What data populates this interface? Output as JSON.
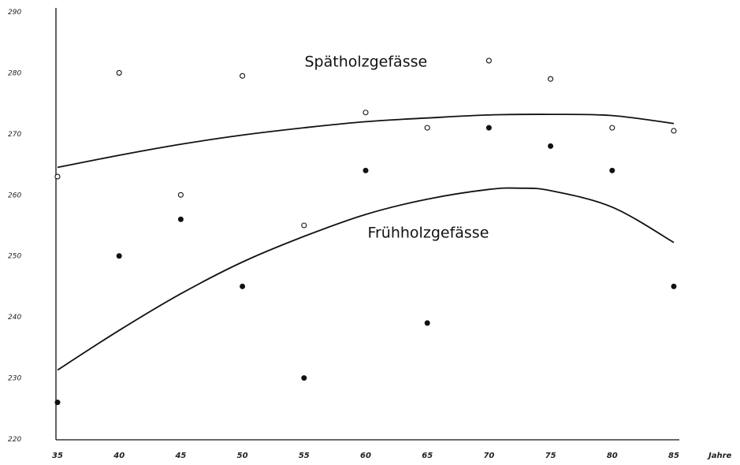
{
  "chart_data": {
    "type": "scatter",
    "title": "",
    "xlabel": "Jahre",
    "ylabel": "",
    "x_ticks": [
      "35",
      "40",
      "45",
      "50",
      "55",
      "60",
      "65",
      "70",
      "75",
      "80",
      "85"
    ],
    "y_ticks": [
      "220",
      "230",
      "240",
      "250",
      "260",
      "270",
      "280",
      "290"
    ],
    "y_tick_labels": [
      "220",
      "230",
      "240",
      "250",
      "260",
      "270",
      "280",
      "290"
    ],
    "xlim": [
      35,
      85
    ],
    "ylim": [
      220,
      290
    ],
    "grid": false,
    "legend": "none",
    "series": [
      {
        "name": "Spätholzgefässe",
        "marker": "open-circle",
        "points": [
          {
            "x": 35,
            "y": 263
          },
          {
            "x": 40,
            "y": 280
          },
          {
            "x": 45,
            "y": 260
          },
          {
            "x": 50,
            "y": 279.5
          },
          {
            "x": 55,
            "y": 255
          },
          {
            "x": 60,
            "y": 273.5
          },
          {
            "x": 65,
            "y": 271
          },
          {
            "x": 70,
            "y": 282
          },
          {
            "x": 75,
            "y": 279
          },
          {
            "x": 80,
            "y": 271
          },
          {
            "x": 85,
            "y": 270.5
          }
        ],
        "trend": [
          {
            "x": 35,
            "y": 264.5
          },
          {
            "x": 40,
            "y": 266.5
          },
          {
            "x": 45,
            "y": 268.3
          },
          {
            "x": 50,
            "y": 269.8
          },
          {
            "x": 55,
            "y": 271
          },
          {
            "x": 60,
            "y": 272
          },
          {
            "x": 65,
            "y": 272.6
          },
          {
            "x": 70,
            "y": 273.1
          },
          {
            "x": 75,
            "y": 273.2
          },
          {
            "x": 80,
            "y": 273
          },
          {
            "x": 85,
            "y": 271.7
          }
        ]
      },
      {
        "name": "Frühholzgefässe",
        "marker": "filled-circle",
        "points": [
          {
            "x": 35,
            "y": 226
          },
          {
            "x": 40,
            "y": 250
          },
          {
            "x": 45,
            "y": 256
          },
          {
            "x": 50,
            "y": 245
          },
          {
            "x": 55,
            "y": 230
          },
          {
            "x": 60,
            "y": 264
          },
          {
            "x": 65,
            "y": 239
          },
          {
            "x": 70,
            "y": 271
          },
          {
            "x": 75,
            "y": 268
          },
          {
            "x": 80,
            "y": 264
          },
          {
            "x": 85,
            "y": 245
          }
        ],
        "trend": [
          {
            "x": 35,
            "y": 231.3
          },
          {
            "x": 40,
            "y": 237.8
          },
          {
            "x": 45,
            "y": 243.8
          },
          {
            "x": 50,
            "y": 249
          },
          {
            "x": 55,
            "y": 253.2
          },
          {
            "x": 60,
            "y": 256.8
          },
          {
            "x": 65,
            "y": 259.3
          },
          {
            "x": 70,
            "y": 260.9
          },
          {
            "x": 72.5,
            "y": 261.1
          },
          {
            "x": 75,
            "y": 260.7
          },
          {
            "x": 80,
            "y": 258
          },
          {
            "x": 85,
            "y": 252.2
          }
        ]
      }
    ],
    "annotations": [
      {
        "text": "Spätholzgefässe",
        "x": 65,
        "y": 281
      },
      {
        "text": "Frühholzgefässe",
        "x": 70,
        "y": 253
      }
    ]
  }
}
